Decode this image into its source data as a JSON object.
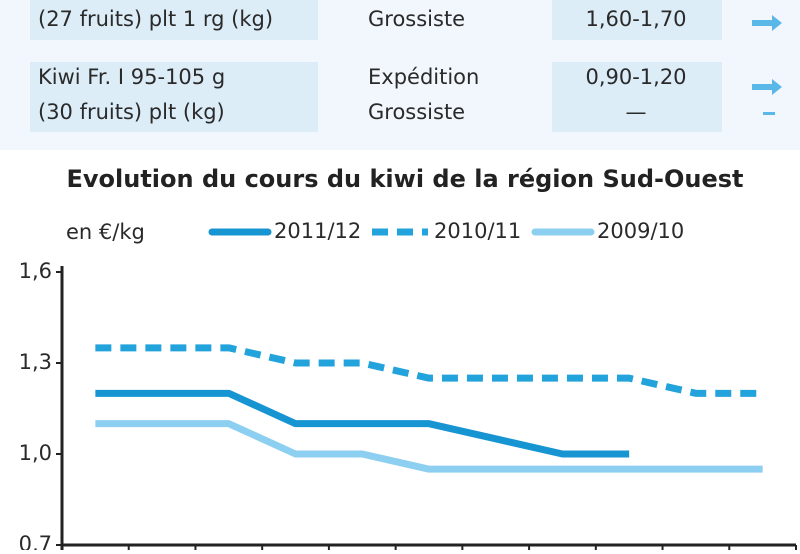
{
  "table": {
    "rows": [
      {
        "product": [
          "(27 fruits) plt 1 rg (kg)"
        ],
        "stage": [
          "Grossiste"
        ],
        "price": [
          "1,60-1,70"
        ]
      },
      {
        "product": [
          "Kiwi Fr. I 95-105 g",
          "(30 fruits) plt (kg)"
        ],
        "stage": [
          "Expédition",
          "Grossiste"
        ],
        "price": [
          "0,90-1,20",
          "—"
        ]
      }
    ]
  },
  "chart_data": {
    "type": "line",
    "title": "Evolution du cours du kiwi de la région Sud-Ouest",
    "y_label": "en €/kg",
    "categories": [
      null,
      null,
      null,
      null,
      null,
      null,
      null,
      null,
      null,
      null,
      null
    ],
    "series": [
      {
        "name": "2011/12",
        "color": "#1794d2",
        "dash": false,
        "values": [
          1.2,
          1.2,
          1.2,
          1.1,
          1.1,
          1.1,
          1.05,
          1.0,
          1.0,
          null,
          null
        ]
      },
      {
        "name": "2010/11",
        "color": "#23a3dc",
        "dash": true,
        "values": [
          1.35,
          1.35,
          1.35,
          1.3,
          1.3,
          1.25,
          1.25,
          1.25,
          1.25,
          1.2,
          1.2
        ]
      },
      {
        "name": "2009/10",
        "color": "#8dcff0",
        "dash": false,
        "values": [
          1.1,
          1.1,
          1.1,
          1.0,
          1.0,
          0.95,
          0.95,
          0.95,
          0.95,
          0.95,
          0.95
        ]
      }
    ],
    "ylim": [
      0.7,
      1.6
    ],
    "yticks": [
      {
        "value": 0.7,
        "label": "0,7"
      },
      {
        "value": 1.0,
        "label": "1,0"
      },
      {
        "value": 1.3,
        "label": "1,3"
      },
      {
        "value": 1.6,
        "label": "1,6"
      }
    ]
  }
}
